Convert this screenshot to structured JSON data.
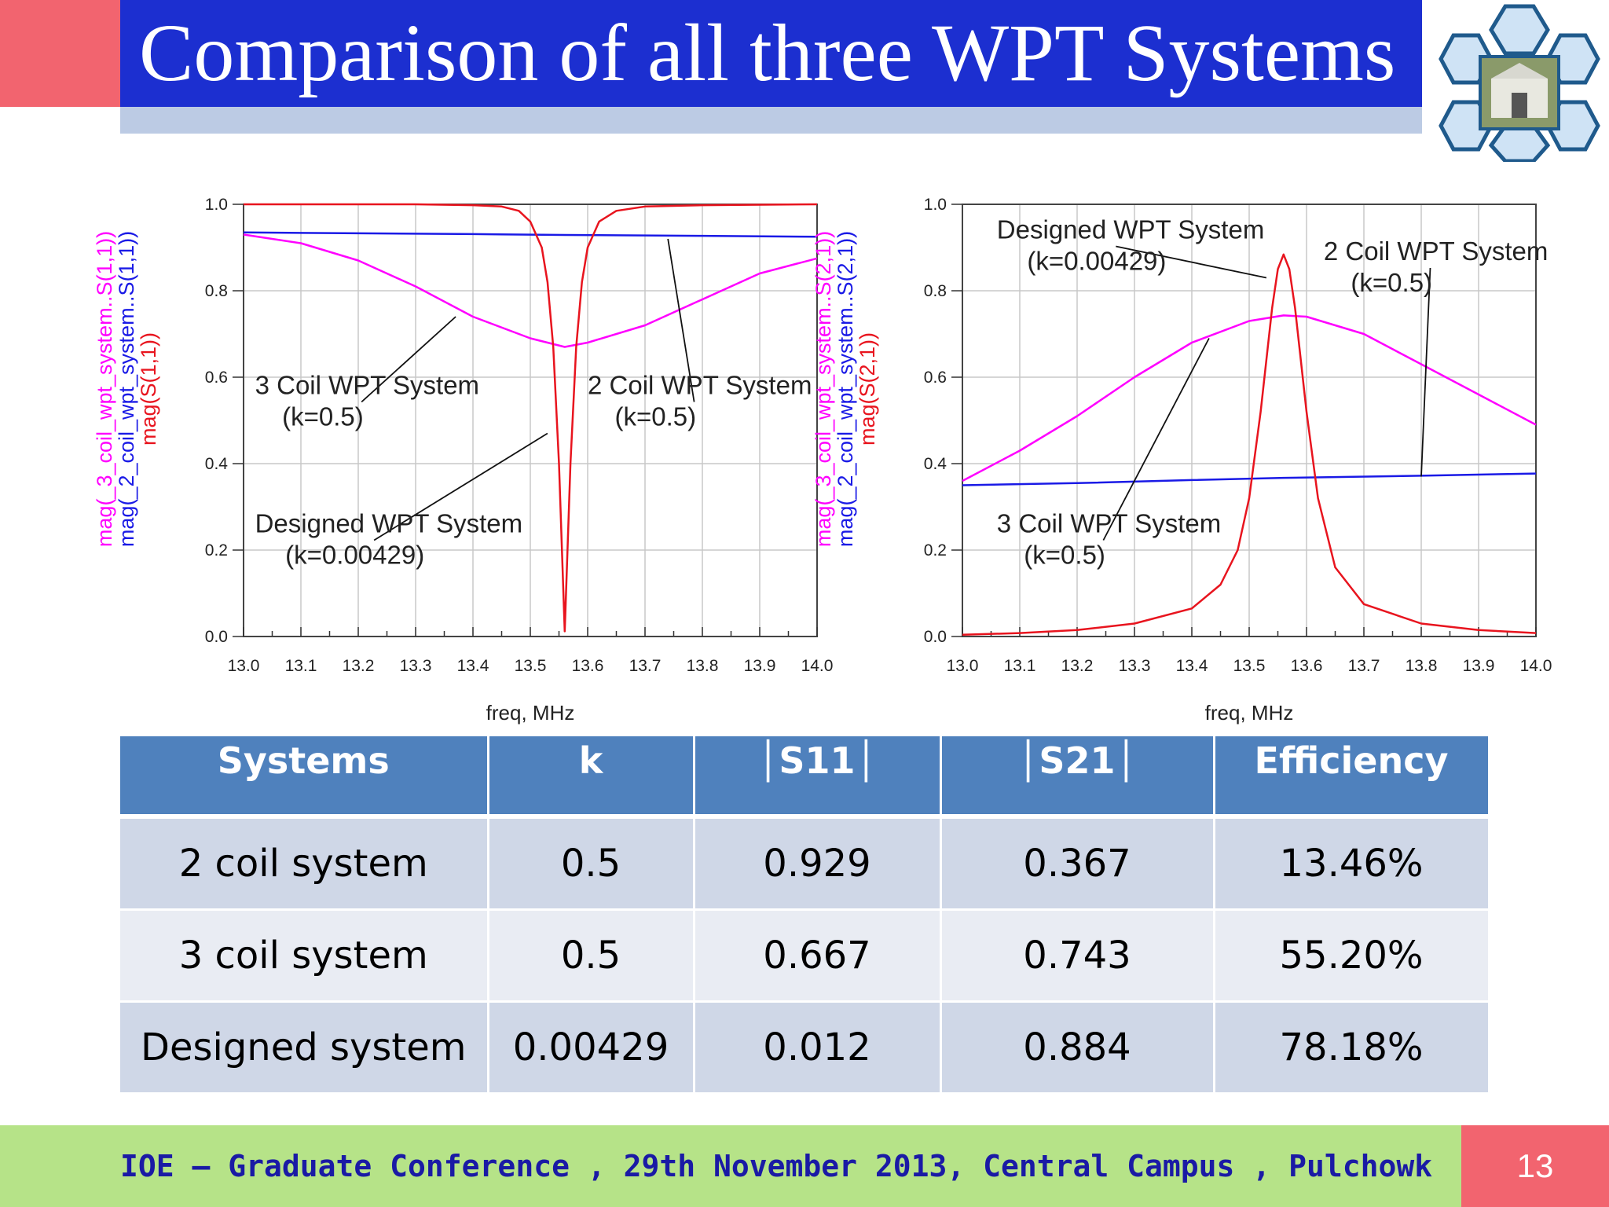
{
  "slide": {
    "title": "Comparison of all three WPT Systems",
    "footer": "IOE – Graduate Conference , 29th November 2013, Central Campus , Pulchowk",
    "page_number": "13"
  },
  "colors": {
    "accent": "#f2646f",
    "title_bar": "#1c2fd0",
    "footer_bg": "#b6e388",
    "magenta": "#ff00ff",
    "blue": "#1a1ae6",
    "red": "#e8141e"
  },
  "chart_data": [
    {
      "type": "line",
      "xlabel": "freq, MHz",
      "ylabel": [
        "mag(_3_coil_wpt_system..S(1,1))",
        "mag(_2_coil_wpt_system..S(1,1))",
        "mag(S(1,1))"
      ],
      "xlim": [
        13.0,
        14.0
      ],
      "ylim": [
        0.0,
        1.0
      ],
      "x_ticks": [
        "13.0",
        "13.1",
        "13.2",
        "13.3",
        "13.4",
        "13.5",
        "13.6",
        "13.7",
        "13.8",
        "13.9",
        "14.0"
      ],
      "y_ticks": [
        "0.0",
        "0.2",
        "0.4",
        "0.6",
        "0.8",
        "1.0"
      ],
      "grid": true,
      "series": [
        {
          "color": "#ff00ff",
          "x": [
            13.0,
            13.1,
            13.2,
            13.3,
            13.4,
            13.5,
            13.56,
            13.6,
            13.7,
            13.8,
            13.9,
            14.0
          ],
          "y": [
            0.93,
            0.91,
            0.87,
            0.81,
            0.74,
            0.69,
            0.67,
            0.68,
            0.72,
            0.78,
            0.84,
            0.875
          ]
        },
        {
          "color": "#1a1ae6",
          "x": [
            13.0,
            13.2,
            13.4,
            13.56,
            13.8,
            14.0
          ],
          "y": [
            0.935,
            0.933,
            0.931,
            0.929,
            0.927,
            0.925
          ]
        },
        {
          "color": "#e8141e",
          "x": [
            13.0,
            13.3,
            13.4,
            13.45,
            13.48,
            13.5,
            13.52,
            13.53,
            13.54,
            13.55,
            13.56,
            13.57,
            13.58,
            13.59,
            13.6,
            13.62,
            13.65,
            13.7,
            13.8,
            14.0
          ],
          "y": [
            1.0,
            1.0,
            0.998,
            0.995,
            0.985,
            0.96,
            0.9,
            0.82,
            0.67,
            0.4,
            0.012,
            0.4,
            0.67,
            0.82,
            0.9,
            0.96,
            0.985,
            0.995,
            0.998,
            1.0
          ]
        }
      ],
      "annotations": [
        {
          "lines": [
            "3 Coil WPT System",
            "(k=0.5)"
          ],
          "x": 13.02,
          "y": 0.55,
          "pointer": [
            13.37,
            0.74
          ]
        },
        {
          "lines": [
            "2 Coil WPT System",
            "(k=0.5)"
          ],
          "x": 13.6,
          "y": 0.55,
          "pointer": [
            13.74,
            0.92
          ]
        },
        {
          "lines": [
            "Designed WPT System",
            "(k=0.00429)"
          ],
          "x": 13.02,
          "y": 0.23,
          "pointer": [
            13.53,
            0.47
          ]
        }
      ]
    },
    {
      "type": "line",
      "xlabel": "freq, MHz",
      "ylabel": [
        "mag(_3_coil_wpt_system..S(2,1))",
        "mag(_2_coil_wpt_system..S(2,1))",
        "mag(S(2,1))"
      ],
      "xlim": [
        13.0,
        14.0
      ],
      "ylim": [
        0.0,
        1.0
      ],
      "x_ticks": [
        "13.0",
        "13.1",
        "13.2",
        "13.3",
        "13.4",
        "13.5",
        "13.6",
        "13.7",
        "13.8",
        "13.9",
        "14.0"
      ],
      "y_ticks": [
        "0.0",
        "0.2",
        "0.4",
        "0.6",
        "0.8",
        "1.0"
      ],
      "grid": true,
      "series": [
        {
          "color": "#ff00ff",
          "x": [
            13.0,
            13.1,
            13.2,
            13.3,
            13.4,
            13.5,
            13.56,
            13.6,
            13.7,
            13.8,
            13.9,
            14.0
          ],
          "y": [
            0.36,
            0.43,
            0.51,
            0.6,
            0.68,
            0.73,
            0.743,
            0.74,
            0.7,
            0.63,
            0.56,
            0.49
          ]
        },
        {
          "color": "#1a1ae6",
          "x": [
            13.0,
            13.2,
            13.4,
            13.56,
            13.8,
            14.0
          ],
          "y": [
            0.35,
            0.355,
            0.362,
            0.367,
            0.372,
            0.377
          ]
        },
        {
          "color": "#e8141e",
          "x": [
            13.0,
            13.1,
            13.2,
            13.3,
            13.4,
            13.45,
            13.48,
            13.5,
            13.52,
            13.54,
            13.55,
            13.56,
            13.57,
            13.58,
            13.6,
            13.62,
            13.65,
            13.7,
            13.8,
            13.9,
            14.0
          ],
          "y": [
            0.004,
            0.008,
            0.015,
            0.03,
            0.065,
            0.12,
            0.2,
            0.32,
            0.52,
            0.76,
            0.85,
            0.884,
            0.85,
            0.76,
            0.52,
            0.32,
            0.16,
            0.075,
            0.03,
            0.015,
            0.008
          ]
        }
      ],
      "annotations": [
        {
          "lines": [
            "Designed WPT System",
            "(k=0.00429)"
          ],
          "x": 13.06,
          "y": 0.91,
          "pointer": [
            13.53,
            0.83
          ]
        },
        {
          "lines": [
            "2 Coil WPT System",
            "(k=0.5)"
          ],
          "x": 13.63,
          "y": 0.86,
          "pointer": [
            13.8,
            0.37
          ]
        },
        {
          "lines": [
            "3 Coil WPT System",
            "(k=0.5)"
          ],
          "x": 13.06,
          "y": 0.23,
          "pointer": [
            13.43,
            0.69
          ]
        }
      ]
    }
  ],
  "table": {
    "headers": [
      "Systems",
      "k",
      "│S11│",
      "│S21│",
      "Efficiency"
    ],
    "rows": [
      [
        "2 coil system",
        "0.5",
        "0.929",
        "0.367",
        "13.46%"
      ],
      [
        "3 coil system",
        "0.5",
        "0.667",
        "0.743",
        "55.20%"
      ],
      [
        "Designed system",
        "0.00429",
        "0.012",
        "0.884",
        "78.18%"
      ]
    ]
  }
}
